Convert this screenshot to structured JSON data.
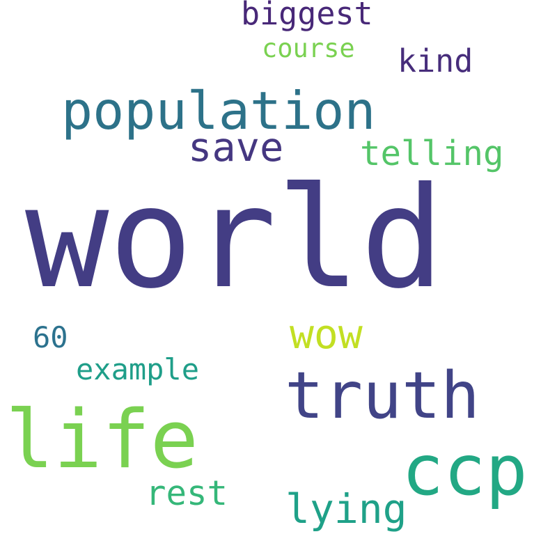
{
  "words": [
    {
      "text": "world",
      "color": "#433d84"
    },
    {
      "text": "population",
      "color": "#2d7289"
    },
    {
      "text": "life",
      "color": "#7ad151"
    },
    {
      "text": "truth",
      "color": "#414487"
    },
    {
      "text": "ccp",
      "color": "#22a884"
    },
    {
      "text": "save",
      "color": "#453781"
    },
    {
      "text": "telling",
      "color": "#54c568"
    },
    {
      "text": "biggest",
      "color": "#482878"
    },
    {
      "text": "kind",
      "color": "#472d7b"
    },
    {
      "text": "course",
      "color": "#7ad151"
    },
    {
      "text": "wow",
      "color": "#c2df23"
    },
    {
      "text": "lying",
      "color": "#1fa188"
    },
    {
      "text": "rest",
      "color": "#35b779"
    },
    {
      "text": "example",
      "color": "#1f9e89"
    },
    {
      "text": "60",
      "color": "#2c728e"
    }
  ]
}
